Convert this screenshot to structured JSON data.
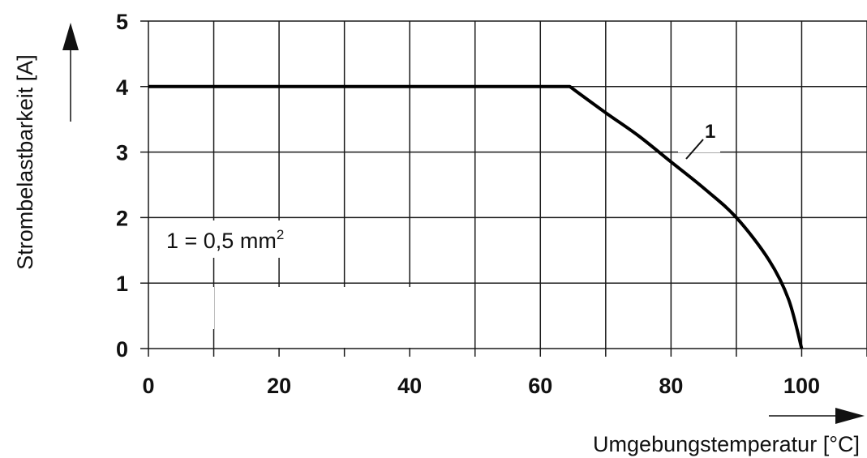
{
  "chart_data": {
    "type": "line",
    "xlabel": "Umgebungstemperatur [°C]",
    "ylabel": "Strombelastbarkeit [A]",
    "xlim": [
      0,
      110
    ],
    "ylim": [
      0,
      5
    ],
    "x_ticks": [
      "0",
      "20",
      "40",
      "60",
      "80",
      "100"
    ],
    "x_tick_values": [
      0,
      20,
      40,
      60,
      80,
      100
    ],
    "y_ticks": [
      "0",
      "1",
      "2",
      "3",
      "4",
      "5"
    ],
    "y_tick_values": [
      0,
      1,
      2,
      3,
      4,
      5
    ],
    "grid": true,
    "annotation": {
      "prefix": "1 = 0,5 mm",
      "sup": "2"
    },
    "series": [
      {
        "label": "1",
        "x": [
          0,
          64.5,
          70,
          75,
          80,
          85,
          90,
          95,
          98,
          100
        ],
        "y": [
          4,
          4,
          3.6,
          3.25,
          2.85,
          2.45,
          2.0,
          1.35,
          0.75,
          0
        ]
      }
    ]
  }
}
